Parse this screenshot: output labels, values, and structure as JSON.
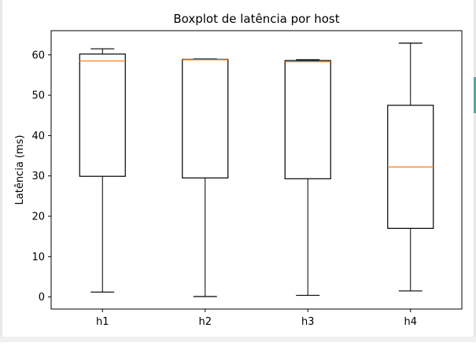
{
  "chart_data": {
    "type": "boxplot",
    "title": "Boxplot de latência por host",
    "xlabel": "",
    "ylabel": "Latência (ms)",
    "ylim": [
      -3,
      66
    ],
    "yticks": [
      0,
      10,
      20,
      30,
      40,
      50,
      60
    ],
    "grid": false,
    "categories": [
      "h1",
      "h2",
      "h3",
      "h4"
    ],
    "boxes": [
      {
        "category": "h1",
        "whisker_low": 1.2,
        "q1": 29.9,
        "median": 58.5,
        "q3": 60.2,
        "whisker_high": 61.5
      },
      {
        "category": "h2",
        "whisker_low": 0.1,
        "q1": 29.5,
        "median": 58.8,
        "q3": 58.9,
        "whisker_high": 59.0
      },
      {
        "category": "h3",
        "whisker_low": 0.4,
        "q1": 29.3,
        "median": 58.3,
        "q3": 58.6,
        "whisker_high": 58.8
      },
      {
        "category": "h4",
        "whisker_low": 1.5,
        "q1": 17.0,
        "median": 32.2,
        "q3": 47.5,
        "whisker_high": 62.9
      }
    ],
    "colors": {
      "box": "#000000",
      "median": "#ff7f0e",
      "background": "#ffffff"
    }
  }
}
